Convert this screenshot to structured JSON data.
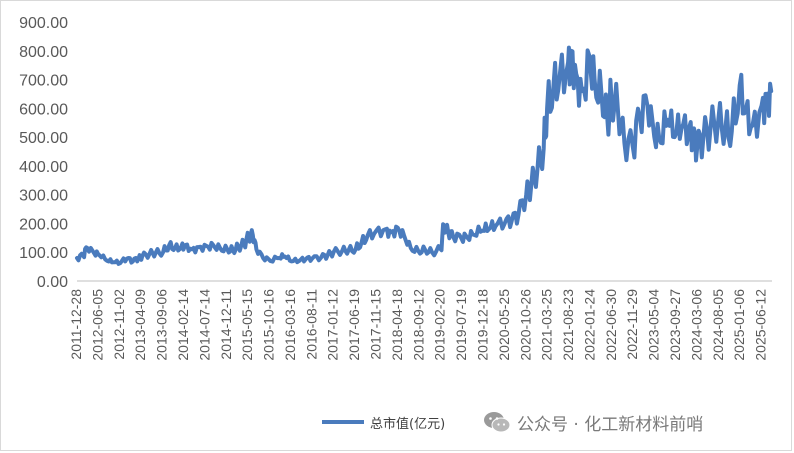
{
  "chart_data": {
    "type": "line",
    "title": "",
    "xlabel": "",
    "ylabel": "",
    "ylim": [
      0,
      900
    ],
    "y_ticks": [
      "0.00",
      "100.00",
      "200.00",
      "300.00",
      "400.00",
      "500.00",
      "600.00",
      "700.00",
      "800.00",
      "900.00"
    ],
    "x_ticks": [
      "2011-12-28",
      "2012-06-05",
      "2012-11-02",
      "2013-04-09",
      "2013-09-06",
      "2014-02-14",
      "2014-07-14",
      "2014-12-11",
      "2015-05-15",
      "2015-10-16",
      "2016-03-16",
      "2016-08-11",
      "2017-01-12",
      "2017-06-19",
      "2017-11-15",
      "2018-04-18",
      "2018-09-12",
      "2019-02-20",
      "2019-07-19",
      "2019-12-18",
      "2020-05-25",
      "2020-10-26",
      "2021-03-25",
      "2021-08-23",
      "2022-01-24",
      "2022-06-30",
      "2022-11-29",
      "2023-05-04",
      "2023-09-27",
      "2024-03-06",
      "2024-08-05",
      "2025-01-06",
      "2025-06-12"
    ],
    "legend_position": "bottom",
    "series": [
      {
        "name": "总市值(亿元)",
        "color": "#4a7bbd",
        "x": [
          "2011-12-28",
          "2012-02-10",
          "2012-03-10",
          "2012-05-01",
          "2012-06-05",
          "2012-08-01",
          "2012-09-15",
          "2012-11-02",
          "2012-12-20",
          "2013-02-01",
          "2013-03-15",
          "2013-04-09",
          "2013-06-01",
          "2013-07-15",
          "2013-09-06",
          "2013-10-20",
          "2013-12-01",
          "2014-01-15",
          "2014-02-14",
          "2014-04-01",
          "2014-05-20",
          "2014-07-14",
          "2014-09-01",
          "2014-10-20",
          "2014-12-11",
          "2015-01-20",
          "2015-03-01",
          "2015-04-10",
          "2015-05-15",
          "2015-06-12",
          "2015-07-08",
          "2015-08-25",
          "2015-10-16",
          "2015-12-20",
          "2016-01-28",
          "2016-03-16",
          "2016-05-10",
          "2016-06-25",
          "2016-08-11",
          "2016-10-15",
          "2016-12-01",
          "2017-01-12",
          "2017-03-15",
          "2017-05-01",
          "2017-06-19",
          "2017-08-01",
          "2017-09-15",
          "2017-11-15",
          "2018-01-20",
          "2018-03-01",
          "2018-04-18",
          "2018-06-01",
          "2018-07-20",
          "2018-09-12",
          "2018-11-01",
          "2018-12-20",
          "2019-02-20",
          "2019-03-15",
          "2019-04-15",
          "2019-05-20",
          "2019-07-19",
          "2019-09-01",
          "2019-10-20",
          "2019-12-18",
          "2020-02-01",
          "2020-03-20",
          "2020-05-25",
          "2020-07-15",
          "2020-09-01",
          "2020-10-26",
          "2020-12-01",
          "2021-01-15",
          "2021-03-01",
          "2021-03-25",
          "2021-05-10",
          "2021-06-25",
          "2021-08-23",
          "2021-09-15",
          "2021-10-20",
          "2021-11-30",
          "2022-01-24",
          "2022-03-01",
          "2022-04-20",
          "2022-06-01",
          "2022-06-30",
          "2022-08-15",
          "2022-10-01",
          "2022-11-29",
          "2023-01-20",
          "2023-03-15",
          "2023-05-04",
          "2023-06-20",
          "2023-08-10",
          "2023-09-27",
          "2023-11-15",
          "2024-01-05",
          "2024-02-05",
          "2024-03-06",
          "2024-04-20",
          "2024-06-10",
          "2024-08-05",
          "2024-09-25",
          "2024-11-10",
          "2025-01-06",
          "2025-02-20",
          "2025-04-08",
          "2025-06-12",
          "2025-07-20",
          "2025-08-20"
        ],
        "values": [
          80,
          88,
          115,
          95,
          90,
          70,
          65,
          62,
          78,
          68,
          80,
          85,
          95,
          98,
          100,
          125,
          115,
          120,
          125,
          110,
          118,
          122,
          125,
          115,
          110,
          108,
          118,
          130,
          155,
          160,
          110,
          80,
          70,
          80,
          85,
          68,
          70,
          75,
          78,
          82,
          90,
          100,
          105,
          108,
          110,
          135,
          160,
          175,
          180,
          170,
          185,
          160,
          115,
          105,
          108,
          100,
          110,
          195,
          170,
          155,
          148,
          150,
          160,
          175,
          180,
          190,
          200,
          210,
          230,
          300,
          330,
          390,
          460,
          600,
          680,
          720,
          760,
          800,
          720,
          660,
          780,
          700,
          650,
          560,
          640,
          600,
          480,
          470,
          570,
          610,
          500,
          480,
          560,
          500,
          530,
          510,
          500,
          460,
          500,
          530,
          560,
          530,
          520,
          680,
          600,
          540,
          610,
          650,
          660
        ]
      }
    ]
  },
  "legend": {
    "label": "总市值(亿元)"
  },
  "watermark": {
    "text": "公众号 · 化工新材料前哨",
    "icon": "wechat-icon"
  }
}
